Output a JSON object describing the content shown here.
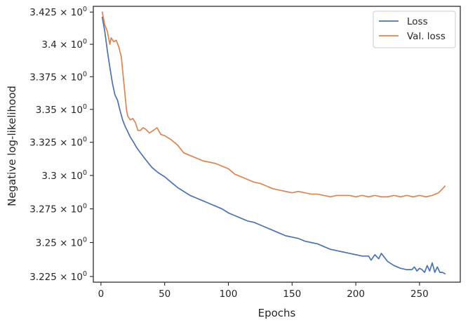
{
  "chart_data": {
    "type": "line",
    "xlabel": "Epochs",
    "ylabel": "Negative log-likelihood",
    "xlim": [
      -6,
      282
    ],
    "ylim": [
      3.2208,
      3.4295
    ],
    "y_scale": "log",
    "grid": false,
    "legend_position": "top-right",
    "x_ticks": [
      0,
      50,
      100,
      150,
      200,
      250
    ],
    "y_ticks": [
      {
        "value": 3.225,
        "mantissa": "3.225",
        "base": "10",
        "exp": "0"
      },
      {
        "value": 3.25,
        "mantissa": "3.25",
        "base": "10",
        "exp": "0"
      },
      {
        "value": 3.275,
        "mantissa": "3.275",
        "base": "10",
        "exp": "0"
      },
      {
        "value": 3.3,
        "mantissa": "3.3",
        "base": "10",
        "exp": "0"
      },
      {
        "value": 3.325,
        "mantissa": "3.325",
        "base": "10",
        "exp": "0"
      },
      {
        "value": 3.35,
        "mantissa": "3.35",
        "base": "10",
        "exp": "0"
      },
      {
        "value": 3.375,
        "mantissa": "3.375",
        "base": "10",
        "exp": "0"
      },
      {
        "value": 3.4,
        "mantissa": "3.4",
        "base": "10",
        "exp": "0"
      },
      {
        "value": 3.425,
        "mantissa": "3.425",
        "base": "10",
        "exp": "0"
      }
    ],
    "series": [
      {
        "name": "Loss",
        "color": "#4c72b0",
        "x": [
          1,
          3,
          5,
          7,
          9,
          11,
          13,
          15,
          17,
          19,
          21,
          23,
          25,
          28,
          31,
          35,
          40,
          45,
          50,
          55,
          60,
          65,
          70,
          75,
          80,
          85,
          90,
          95,
          100,
          105,
          110,
          115,
          120,
          125,
          130,
          135,
          140,
          145,
          150,
          155,
          160,
          165,
          170,
          175,
          180,
          185,
          190,
          195,
          200,
          205,
          210,
          212,
          215,
          218,
          220,
          225,
          230,
          235,
          240,
          244,
          246,
          248,
          250,
          252,
          254,
          256,
          258,
          260,
          262,
          264,
          266,
          268,
          270
        ],
        "y": [
          3.421,
          3.41,
          3.395,
          3.382,
          3.37,
          3.361,
          3.357,
          3.349,
          3.342,
          3.337,
          3.333,
          3.329,
          3.326,
          3.321,
          3.317,
          3.312,
          3.306,
          3.302,
          3.299,
          3.295,
          3.291,
          3.288,
          3.285,
          3.283,
          3.281,
          3.279,
          3.277,
          3.275,
          3.272,
          3.27,
          3.268,
          3.266,
          3.265,
          3.263,
          3.261,
          3.259,
          3.257,
          3.255,
          3.254,
          3.253,
          3.251,
          3.25,
          3.249,
          3.247,
          3.245,
          3.244,
          3.243,
          3.242,
          3.241,
          3.24,
          3.24,
          3.237,
          3.241,
          3.238,
          3.242,
          3.236,
          3.233,
          3.231,
          3.23,
          3.23,
          3.232,
          3.229,
          3.231,
          3.23,
          3.228,
          3.233,
          3.229,
          3.235,
          3.228,
          3.232,
          3.228,
          3.228,
          3.227
        ]
      },
      {
        "name": "Val. loss",
        "color": "#dd8452",
        "x": [
          1,
          3,
          5,
          7,
          8,
          10,
          12,
          14,
          16,
          18,
          20,
          21,
          23,
          25,
          27,
          29,
          31,
          33,
          35,
          38,
          41,
          44,
          47,
          50,
          55,
          60,
          65,
          70,
          75,
          80,
          85,
          90,
          95,
          100,
          105,
          110,
          115,
          120,
          125,
          130,
          135,
          140,
          145,
          150,
          155,
          160,
          165,
          170,
          175,
          180,
          185,
          190,
          195,
          200,
          205,
          210,
          215,
          220,
          225,
          230,
          235,
          240,
          245,
          250,
          255,
          260,
          265,
          268,
          270
        ],
        "y": [
          3.425,
          3.415,
          3.41,
          3.4,
          3.405,
          3.402,
          3.403,
          3.398,
          3.39,
          3.37,
          3.35,
          3.345,
          3.342,
          3.343,
          3.34,
          3.334,
          3.334,
          3.336,
          3.335,
          3.332,
          3.334,
          3.336,
          3.331,
          3.33,
          3.327,
          3.323,
          3.317,
          3.315,
          3.313,
          3.311,
          3.31,
          3.309,
          3.307,
          3.305,
          3.301,
          3.299,
          3.297,
          3.295,
          3.294,
          3.292,
          3.29,
          3.289,
          3.288,
          3.287,
          3.288,
          3.287,
          3.286,
          3.286,
          3.285,
          3.284,
          3.285,
          3.285,
          3.285,
          3.284,
          3.285,
          3.284,
          3.285,
          3.284,
          3.284,
          3.285,
          3.284,
          3.285,
          3.284,
          3.285,
          3.284,
          3.285,
          3.287,
          3.29,
          3.292
        ]
      }
    ]
  }
}
